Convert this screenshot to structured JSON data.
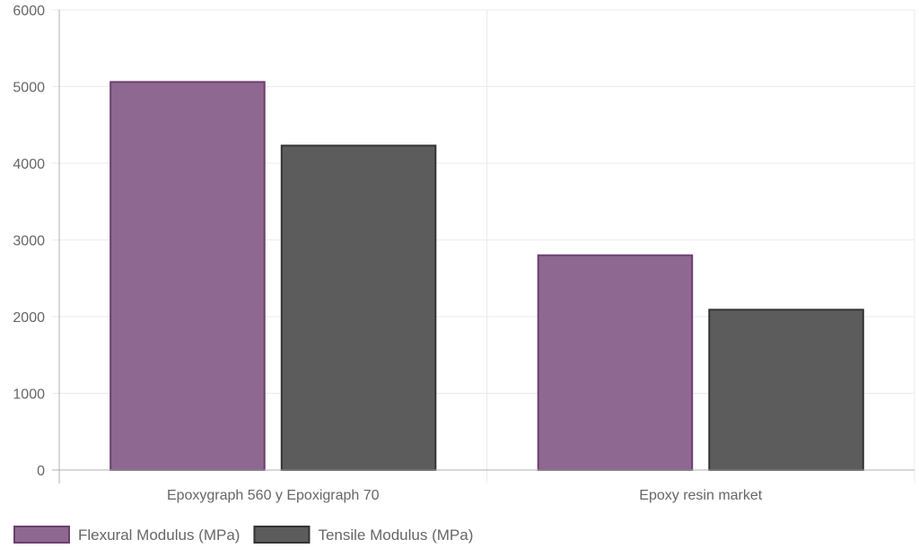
{
  "chart_data": {
    "type": "bar",
    "title": "",
    "xlabel": "",
    "ylabel": "",
    "categories": [
      "Epoxygraph 560 y Epoxigraph 70",
      "Epoxy resin market"
    ],
    "series": [
      {
        "name": "Flexural Modulus (MPa)",
        "values": [
          5060,
          2800
        ],
        "color": "#8e6891",
        "border": "#6b3f70"
      },
      {
        "name": "Tensile Modulus (MPa)",
        "values": [
          4230,
          2090
        ],
        "color": "#5c5c5c",
        "border": "#333333"
      }
    ],
    "ylim": [
      0,
      6000
    ],
    "yticks": [
      0,
      1000,
      2000,
      3000,
      4000,
      5000,
      6000
    ],
    "grid": true,
    "legend_position": "bottom-left",
    "colors": {
      "gridline": "#ebebeb",
      "axis": "#b0b0b0",
      "tick_text": "#666666"
    }
  }
}
